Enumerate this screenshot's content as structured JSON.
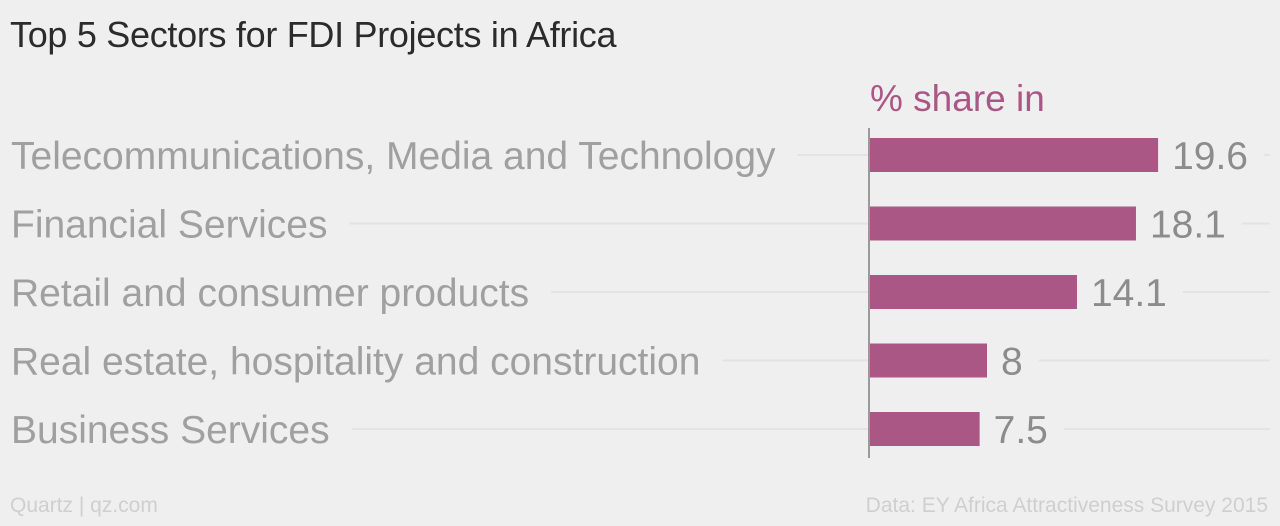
{
  "header": {
    "title": "Top 5 Sectors for FDI Projects in Africa"
  },
  "footer": {
    "source_brand": "Quartz | qz.com",
    "data_source": "Data: EY Africa Attractiveness Survey 2015"
  },
  "colors": {
    "bar": "#ab5786",
    "series_label": "#ab5786",
    "category_label": "#a0a0a0",
    "value_label": "#8c8c8c",
    "guide_line": "#e3e3e3",
    "axis_line": "#9a9a9a",
    "background": "#f0efef"
  },
  "chart_data": {
    "type": "bar",
    "orientation": "horizontal",
    "title": "Top 5 Sectors for FDI Projects in Africa",
    "categories": [
      "Telecommunications, Media and Technology",
      "Financial Services",
      "Retail and consumer products",
      "Real estate, hospitality and construction",
      "Business Services"
    ],
    "series": [
      {
        "name": "% share in",
        "values": [
          19.6,
          18.1,
          14.1,
          8,
          7.5
        ]
      }
    ],
    "value_labels": [
      "19.6",
      "18.1",
      "14.1",
      "8",
      "7.5"
    ],
    "xlim": [
      0,
      20
    ],
    "grid": false,
    "legend": "top"
  }
}
